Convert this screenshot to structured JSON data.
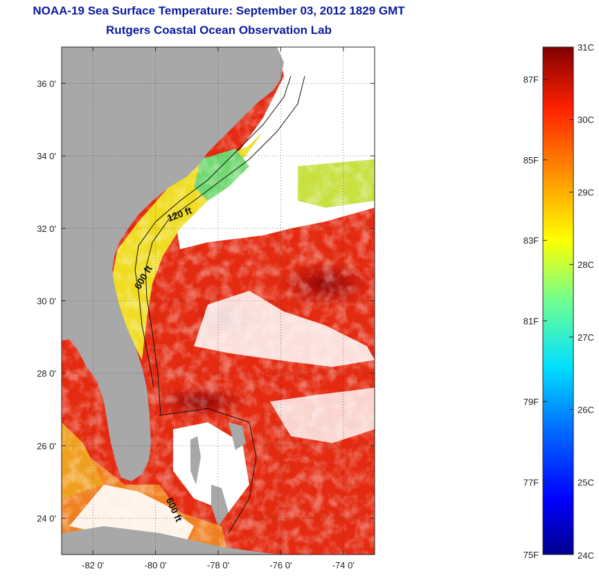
{
  "title": {
    "line1": "NOAA-19 Sea Surface Temperature:  September 03, 2012 1829 GMT",
    "line2": "Rutgers Coastal Ocean Observation Lab"
  },
  "map": {
    "lon_range": [
      -83,
      -73
    ],
    "lat_range": [
      23,
      37
    ],
    "lon_ticks": [
      {
        "value": -82,
        "label": "-82 0'"
      },
      {
        "value": -80,
        "label": "-80 0'"
      },
      {
        "value": -78,
        "label": "-78 0'"
      },
      {
        "value": -76,
        "label": "-76 0'"
      },
      {
        "value": -74,
        "label": "-74 0'"
      }
    ],
    "lat_ticks": [
      {
        "value": 36,
        "label": "36 0'"
      },
      {
        "value": 34,
        "label": "34 0'"
      },
      {
        "value": 32,
        "label": "32 0'"
      },
      {
        "value": 30,
        "label": "30 0'"
      },
      {
        "value": 28,
        "label": "28 0'"
      },
      {
        "value": 26,
        "label": "26 0'"
      },
      {
        "value": 24,
        "label": "24 0'"
      }
    ],
    "grid": true,
    "contour_labels": [
      {
        "text": "120 ft",
        "lon": -79.2,
        "lat": 32.3,
        "rotate": -20
      },
      {
        "text": "600 ft",
        "lon": -80.3,
        "lat": 30.6,
        "rotate": -60
      },
      {
        "text": "600 ft",
        "lon": -79.5,
        "lat": 24.2,
        "rotate": 65
      }
    ],
    "land_color": "#a8a8a8",
    "cloud_color": "#ffffff"
  },
  "colorbar": {
    "min_c": 24,
    "max_c": 31,
    "c_labels": [
      "31C",
      "30C",
      "29C",
      "28C",
      "27C",
      "26C",
      "25C",
      "24C"
    ],
    "f_labels": [
      "87F",
      "85F",
      "83F",
      "81F",
      "79F",
      "77F",
      "75F"
    ],
    "f_values": [
      87,
      85,
      83,
      81,
      79,
      77,
      75
    ],
    "colormap": [
      "#00008f",
      "#0000ff",
      "#0080ff",
      "#00ffff",
      "#80ff80",
      "#ffff00",
      "#ff8000",
      "#ff0000",
      "#800000"
    ]
  }
}
